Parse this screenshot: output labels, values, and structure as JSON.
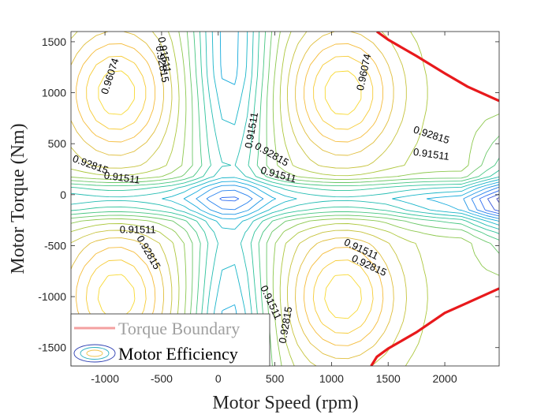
{
  "chart_data": {
    "type": "contour",
    "title": "",
    "xlabel": "Motor Speed (rpm)",
    "ylabel": "Motor Torque (Nm)",
    "xlim": [
      -1300,
      2480
    ],
    "ylim": [
      -1680,
      1600
    ],
    "xticks": [
      -1000,
      -500,
      0,
      500,
      1000,
      1500,
      2000
    ],
    "xtick_labels": [
      "-1000",
      "-500",
      "0",
      "500",
      "1000",
      "1500",
      "2000"
    ],
    "yticks": [
      -1500,
      -1000,
      -500,
      0,
      500,
      1000,
      1500
    ],
    "ytick_labels": [
      "-1500",
      "-1000",
      "-500",
      "0",
      "500",
      "1000",
      "1500"
    ],
    "grid": false,
    "legend": {
      "position": "bottom-left",
      "entries": [
        "Torque Boundary",
        "Motor Efficiency"
      ]
    },
    "colors": {
      "torque_boundary": "#e8191c",
      "legend_boundary_sample": "#f4a0a0",
      "legend_disabled_text": "#a0a0a0",
      "colormap": [
        "#3e26a8",
        "#2d6ff5",
        "#12b1d9",
        "#35c68f",
        "#a5c93d",
        "#f5ba3c",
        "#f9e82d"
      ]
    },
    "torque_boundary": {
      "upper": [
        {
          "x": 1400,
          "y": 1600
        },
        {
          "x": 1500,
          "y": 1520
        },
        {
          "x": 1750,
          "y": 1360
        },
        {
          "x": 2000,
          "y": 1190
        },
        {
          "x": 2200,
          "y": 1060
        },
        {
          "x": 2480,
          "y": 920
        }
      ],
      "lower": [
        {
          "x": 1350,
          "y": -1680
        },
        {
          "x": 1400,
          "y": -1590
        },
        {
          "x": 1500,
          "y": -1510
        },
        {
          "x": 1750,
          "y": -1350
        },
        {
          "x": 2000,
          "y": -1160
        },
        {
          "x": 2200,
          "y": -1060
        },
        {
          "x": 2480,
          "y": -920
        }
      ]
    },
    "contour_levels_labeled": [
      "0.91511",
      "0.92815",
      "0.96074"
    ],
    "contour_labels": [
      {
        "text": "0.96074",
        "x": -950,
        "y": 1160,
        "rotation": -72
      },
      {
        "text": "0.91511",
        "x": -480,
        "y": 1370,
        "rotation": 80
      },
      {
        "text": "0.92815",
        "x": -500,
        "y": 1280,
        "rotation": 80
      },
      {
        "text": "0.96074",
        "x": 1290,
        "y": 1200,
        "rotation": -78
      },
      {
        "text": "0.91511",
        "x": 300,
        "y": 630,
        "rotation": -80
      },
      {
        "text": "0.92815",
        "x": 470,
        "y": 390,
        "rotation": 30
      },
      {
        "text": "0.91511",
        "x": 530,
        "y": 190,
        "rotation": 15
      },
      {
        "text": "0.92815",
        "x": -1130,
        "y": 290,
        "rotation": 20
      },
      {
        "text": "0.91511",
        "x": -850,
        "y": 160,
        "rotation": 8
      },
      {
        "text": "0.92815",
        "x": 1880,
        "y": 580,
        "rotation": 18
      },
      {
        "text": "0.91511",
        "x": 1880,
        "y": 390,
        "rotation": 8
      },
      {
        "text": "0.91511",
        "x": -710,
        "y": -350,
        "rotation": 0
      },
      {
        "text": "0.92815",
        "x": -620,
        "y": -570,
        "rotation": 60
      },
      {
        "text": "0.91511",
        "x": 1260,
        "y": -540,
        "rotation": 25
      },
      {
        "text": "0.92815",
        "x": 1330,
        "y": -700,
        "rotation": 25
      },
      {
        "text": "0.91511",
        "x": 460,
        "y": -1060,
        "rotation": 65
      },
      {
        "text": "0.92815",
        "x": 600,
        "y": -1280,
        "rotation": -80
      }
    ]
  }
}
